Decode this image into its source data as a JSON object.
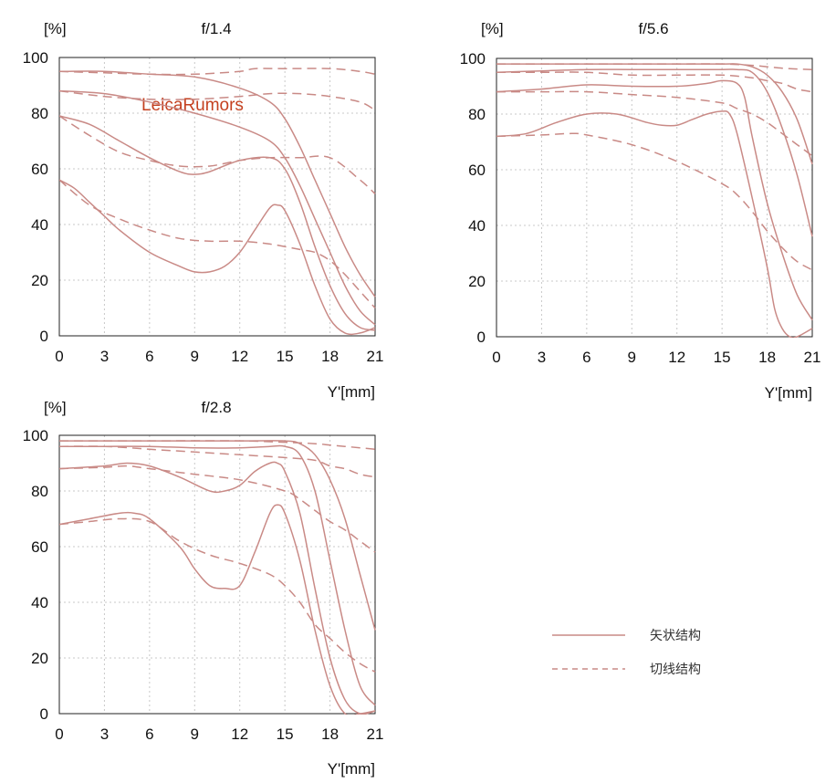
{
  "watermark": "LeicaRumors",
  "legend": {
    "sagittal_label": "矢状结构",
    "tangential_label": "切线结构"
  },
  "colors": {
    "curve": "#c98a86",
    "watermark": "#c4401f"
  },
  "chart_data": [
    {
      "type": "line",
      "title": "f/1.4",
      "ylabel": "[%]",
      "xlabel": "Y'[mm]",
      "x_ticks": [
        "0",
        "3",
        "6",
        "9",
        "12",
        "15",
        "18",
        "21"
      ],
      "y_ticks": [
        "0",
        "20",
        "40",
        "60",
        "80",
        "100"
      ],
      "xlim": [
        0,
        21
      ],
      "ylim": [
        0,
        100
      ],
      "grid": true,
      "series": [
        {
          "style": "solid",
          "x": [
            0,
            3,
            6,
            9,
            12,
            14,
            15,
            16,
            17,
            18,
            19,
            20,
            21
          ],
          "y": [
            95,
            95,
            94,
            93,
            89,
            84,
            78,
            68,
            56,
            44,
            32,
            22,
            14
          ]
        },
        {
          "style": "dashed",
          "x": [
            0,
            3,
            6,
            9,
            12,
            13,
            15,
            18,
            20,
            21
          ],
          "y": [
            95,
            94.5,
            94,
            94,
            95,
            96,
            96,
            96,
            95,
            94
          ]
        },
        {
          "style": "solid",
          "x": [
            0,
            3,
            6,
            9,
            12,
            14,
            15,
            16,
            17,
            18,
            19,
            20,
            21
          ],
          "y": [
            88,
            87,
            84,
            80,
            75,
            70,
            64,
            54,
            42,
            30,
            18,
            9,
            4
          ]
        },
        {
          "style": "dashed",
          "x": [
            0,
            3,
            6,
            9,
            12,
            14,
            16,
            18,
            20,
            21
          ],
          "y": [
            88,
            86,
            85,
            85,
            86,
            87,
            87,
            86,
            84,
            81
          ]
        },
        {
          "style": "solid",
          "x": [
            0,
            2,
            4,
            6,
            8,
            9,
            10,
            12,
            14,
            15,
            16,
            17,
            18,
            19,
            20,
            21
          ],
          "y": [
            79,
            76,
            70,
            64,
            59,
            58,
            59,
            63,
            64,
            60,
            48,
            32,
            18,
            8,
            3,
            2
          ]
        },
        {
          "style": "dashed",
          "x": [
            0,
            2,
            4,
            6,
            8,
            10,
            12,
            14,
            16,
            18,
            20,
            21
          ],
          "y": [
            79,
            72,
            66,
            63,
            61,
            61,
            63,
            64,
            64,
            64,
            56,
            51
          ]
        },
        {
          "style": "solid",
          "x": [
            0,
            1,
            2,
            3,
            4,
            6,
            8,
            9,
            10,
            11,
            12,
            13,
            14,
            14.5,
            15,
            16,
            17,
            18,
            19,
            20,
            21
          ],
          "y": [
            56,
            53,
            48,
            43,
            38,
            30,
            25,
            23,
            23,
            25,
            30,
            38,
            46,
            47,
            45,
            33,
            18,
            6,
            1,
            1,
            3
          ]
        },
        {
          "style": "dashed",
          "x": [
            0,
            2,
            4,
            6,
            8,
            10,
            12,
            14,
            16,
            17,
            18,
            19,
            20,
            21
          ],
          "y": [
            56,
            47,
            42,
            38,
            35,
            34,
            34,
            33,
            31,
            30,
            27,
            22,
            16,
            10
          ]
        }
      ]
    },
    {
      "type": "line",
      "title": "f/5.6",
      "ylabel": "[%]",
      "xlabel": "Y'[mm]",
      "x_ticks": [
        "0",
        "3",
        "6",
        "9",
        "12",
        "15",
        "18",
        "21"
      ],
      "y_ticks": [
        "0",
        "20",
        "40",
        "60",
        "80",
        "100"
      ],
      "xlim": [
        0,
        21
      ],
      "ylim": [
        0,
        100
      ],
      "grid": true,
      "series": [
        {
          "style": "solid",
          "x": [
            0,
            3,
            6,
            9,
            12,
            15,
            16,
            17,
            18,
            19,
            20,
            21
          ],
          "y": [
            98,
            98,
            98,
            98,
            98,
            98,
            98,
            97,
            94,
            88,
            78,
            62
          ]
        },
        {
          "style": "dashed",
          "x": [
            0,
            6,
            12,
            15,
            17,
            18,
            19,
            20,
            21
          ],
          "y": [
            98,
            98,
            98,
            98,
            97.5,
            97,
            96.5,
            96.2,
            96
          ]
        },
        {
          "style": "solid",
          "x": [
            0,
            3,
            6,
            9,
            12,
            15,
            16,
            17,
            18,
            19,
            20,
            21
          ],
          "y": [
            95,
            95.5,
            96,
            96,
            96,
            96,
            96,
            95,
            88,
            75,
            58,
            36
          ]
        },
        {
          "style": "dashed",
          "x": [
            0,
            3,
            6,
            9,
            12,
            15,
            17,
            18,
            19,
            20,
            21
          ],
          "y": [
            95,
            95,
            95,
            94,
            94,
            94,
            93,
            92,
            91,
            89,
            88
          ]
        },
        {
          "style": "solid",
          "x": [
            0,
            3,
            6,
            9,
            12,
            14,
            15,
            16,
            16.5,
            17,
            18,
            19,
            20,
            21
          ],
          "y": [
            88,
            89,
            90.5,
            90,
            90,
            91,
            92,
            91,
            86,
            72,
            48,
            30,
            15,
            6
          ]
        },
        {
          "style": "dashed",
          "x": [
            0,
            3,
            6,
            9,
            12,
            15,
            16,
            17,
            18,
            19,
            20,
            21
          ],
          "y": [
            88,
            88,
            88,
            87,
            86,
            84,
            82,
            80,
            77,
            73,
            69,
            65
          ]
        },
        {
          "style": "solid",
          "x": [
            0,
            2,
            4,
            6,
            8,
            10,
            11,
            12,
            13,
            14,
            15,
            15.5,
            16,
            17,
            18,
            18.5,
            19,
            19.5,
            20,
            21
          ],
          "y": [
            72,
            73,
            77,
            80,
            80,
            77,
            76,
            76,
            78,
            80,
            81,
            80,
            73,
            50,
            25,
            10,
            3,
            0,
            0,
            3
          ]
        },
        {
          "style": "dashed",
          "x": [
            0,
            3,
            5,
            6,
            9,
            12,
            15,
            16,
            17,
            18,
            19,
            20,
            21
          ],
          "y": [
            72,
            72.5,
            73,
            72.5,
            69,
            63,
            55,
            51,
            45,
            38,
            32,
            27,
            24
          ]
        }
      ]
    },
    {
      "type": "line",
      "title": "f/2.8",
      "ylabel": "[%]",
      "xlabel": "Y'[mm]",
      "x_ticks": [
        "0",
        "3",
        "6",
        "9",
        "12",
        "15",
        "18",
        "21"
      ],
      "y_ticks": [
        "0",
        "20",
        "40",
        "60",
        "80",
        "100"
      ],
      "xlim": [
        0,
        21
      ],
      "ylim": [
        0,
        100
      ],
      "grid": true,
      "series": [
        {
          "style": "solid",
          "x": [
            0,
            6,
            12,
            15,
            16,
            17,
            18,
            19,
            20,
            21
          ],
          "y": [
            98,
            98,
            98,
            98,
            97,
            93,
            84,
            70,
            50,
            30
          ]
        },
        {
          "style": "dashed",
          "x": [
            0,
            6,
            12,
            15,
            17,
            18,
            19,
            20,
            21
          ],
          "y": [
            98,
            98,
            98,
            97.5,
            97,
            96.5,
            96,
            95.5,
            95
          ]
        },
        {
          "style": "solid",
          "x": [
            0,
            3,
            6,
            9,
            12,
            14,
            15,
            16,
            17,
            18,
            19,
            20,
            21
          ],
          "y": [
            96,
            96,
            96,
            95.5,
            95.5,
            96,
            96,
            93,
            80,
            55,
            30,
            10,
            3
          ]
        },
        {
          "style": "dashed",
          "x": [
            0,
            3,
            6,
            9,
            12,
            15,
            17,
            18,
            19,
            20,
            21
          ],
          "y": [
            96,
            96,
            95,
            94,
            93,
            92,
            91,
            89,
            88,
            86,
            85
          ]
        },
        {
          "style": "solid",
          "x": [
            0,
            3,
            4.5,
            6,
            8,
            10,
            11,
            12,
            13,
            14,
            14.5,
            15,
            16,
            17,
            18,
            19,
            20,
            21
          ],
          "y": [
            88,
            89,
            90,
            89,
            85,
            80,
            80,
            82,
            87,
            90,
            90,
            87,
            72,
            45,
            20,
            5,
            0,
            1
          ]
        },
        {
          "style": "dashed",
          "x": [
            0,
            3,
            4.5,
            6,
            9,
            12,
            15,
            16,
            17,
            18,
            19,
            20,
            21
          ],
          "y": [
            88,
            88.5,
            89,
            88,
            86,
            84,
            80,
            77,
            73,
            69,
            66,
            62,
            58
          ]
        },
        {
          "style": "solid",
          "x": [
            0,
            2,
            4,
            5,
            6,
            8,
            9,
            10,
            11,
            12,
            13,
            14,
            14.5,
            15,
            16,
            17,
            18,
            19,
            20,
            21
          ],
          "y": [
            68,
            70,
            72,
            72,
            70,
            60,
            52,
            46,
            45,
            46,
            58,
            72,
            75,
            72,
            55,
            30,
            10,
            0,
            0,
            1
          ]
        },
        {
          "style": "dashed",
          "x": [
            0,
            2,
            4,
            6,
            8,
            10,
            12,
            14,
            15,
            16,
            17,
            18,
            19,
            20,
            21
          ],
          "y": [
            68,
            69,
            70,
            69,
            62,
            57,
            54,
            50,
            46,
            40,
            32,
            27,
            22,
            18,
            15
          ]
        }
      ]
    }
  ]
}
